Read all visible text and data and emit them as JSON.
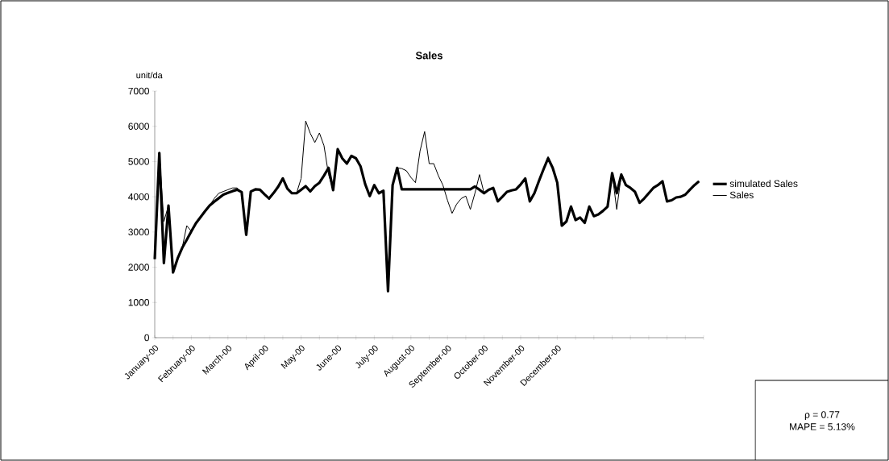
{
  "chart_data": {
    "type": "line",
    "title": "Sales",
    "ylabel": "unit/da",
    "categories": [
      "January-00",
      null,
      null,
      null,
      null,
      null,
      null,
      null,
      "February-00",
      null,
      null,
      null,
      null,
      null,
      null,
      null,
      "March-00",
      null,
      null,
      null,
      null,
      null,
      null,
      null,
      "April-00",
      null,
      null,
      null,
      null,
      null,
      null,
      null,
      "May-00",
      null,
      null,
      null,
      null,
      null,
      null,
      null,
      "June-00",
      null,
      null,
      null,
      null,
      null,
      null,
      null,
      "July-00",
      null,
      null,
      null,
      null,
      null,
      null,
      null,
      "August-00",
      null,
      null,
      null,
      null,
      null,
      null,
      null,
      "September-00",
      null,
      null,
      null,
      null,
      null,
      null,
      null,
      "October-00",
      null,
      null,
      null,
      null,
      null,
      null,
      null,
      "November-00",
      null,
      null,
      null,
      null,
      null,
      null,
      null,
      "December-00",
      null,
      null,
      null,
      null,
      null,
      null,
      null,
      null,
      null,
      null,
      null,
      null,
      null,
      null,
      null,
      null,
      null,
      null,
      null,
      null,
      null,
      null,
      null,
      null,
      null,
      null,
      null,
      null,
      null,
      null,
      null,
      null
    ],
    "ylim": [
      0,
      7000
    ],
    "yticks": [
      0,
      1000,
      2000,
      3000,
      4000,
      5000,
      6000,
      7000
    ],
    "grid": false,
    "legend": "right",
    "marker": "none",
    "line_style": "solid",
    "annotations": [
      "ρ = 0.77",
      "MAPE = 5.13%"
    ],
    "series": [
      {
        "name": "simulated Sales",
        "color": "#000000",
        "values": [
          2230,
          5240,
          2120,
          3750,
          1850,
          2250,
          2550,
          2780,
          3020,
          3250,
          3420,
          3590,
          3750,
          3860,
          3960,
          4060,
          4110,
          4160,
          4200,
          4130,
          2920,
          4150,
          4210,
          4200,
          4070,
          3950,
          4110,
          4290,
          4520,
          4230,
          4100,
          4100,
          4200,
          4300,
          4150,
          4300,
          4400,
          4600,
          4820,
          4190,
          5350,
          5090,
          4940,
          5160,
          5090,
          4860,
          4360,
          4020,
          4330,
          4100,
          4170,
          1320,
          4330,
          4820,
          4210,
          4210,
          4210,
          4210,
          4210,
          4210,
          4210,
          4210,
          4210,
          4210,
          4210,
          4210,
          4210,
          4210,
          4210,
          4210,
          4290,
          4200,
          4100,
          4200,
          4250,
          3870,
          4000,
          4140,
          4180,
          4210,
          4350,
          4520,
          3870,
          4100,
          4450,
          4780,
          5090,
          4820,
          4400,
          3180,
          3300,
          3720,
          3340,
          3410,
          3260,
          3720,
          3450,
          3500,
          3600,
          3720,
          4670,
          4100,
          4630,
          4330,
          4250,
          4140,
          3830,
          3950,
          4100,
          4250,
          4330,
          4440,
          3870,
          3900,
          3980,
          4000,
          4060,
          4200,
          4330,
          4440,
          null
        ]
      },
      {
        "name": "Sales",
        "color": "#000000",
        "values": [
          2230,
          5240,
          3300,
          3750,
          1850,
          2250,
          2550,
          3180,
          3020,
          3250,
          3420,
          3590,
          3750,
          3950,
          4100,
          4150,
          4200,
          4250,
          4250,
          4130,
          2920,
          4150,
          4210,
          4200,
          4070,
          3950,
          4110,
          4290,
          4520,
          4230,
          4100,
          4100,
          4520,
          6150,
          5800,
          5540,
          5810,
          5450,
          4630,
          4190,
          5350,
          5090,
          4940,
          5160,
          5090,
          4860,
          4360,
          4020,
          4330,
          4100,
          4170,
          1320,
          4330,
          4820,
          4800,
          4740,
          4550,
          4400,
          5300,
          5850,
          4940,
          4940,
          4600,
          4330,
          3900,
          3530,
          3790,
          3950,
          4020,
          3640,
          4100,
          4630,
          4100,
          4200,
          4250,
          3870,
          4000,
          4140,
          4180,
          4210,
          4350,
          4520,
          3870,
          4100,
          4450,
          4780,
          5140,
          4820,
          4400,
          3180,
          3300,
          3720,
          3340,
          3410,
          3260,
          3720,
          3450,
          3500,
          3600,
          3720,
          4670,
          3640,
          4630,
          4330,
          4250,
          4140,
          3830,
          3950,
          4100,
          4250,
          4330,
          4440,
          3870,
          3900,
          3980,
          4000,
          4060,
          4200,
          4330,
          4440,
          null
        ]
      }
    ]
  }
}
